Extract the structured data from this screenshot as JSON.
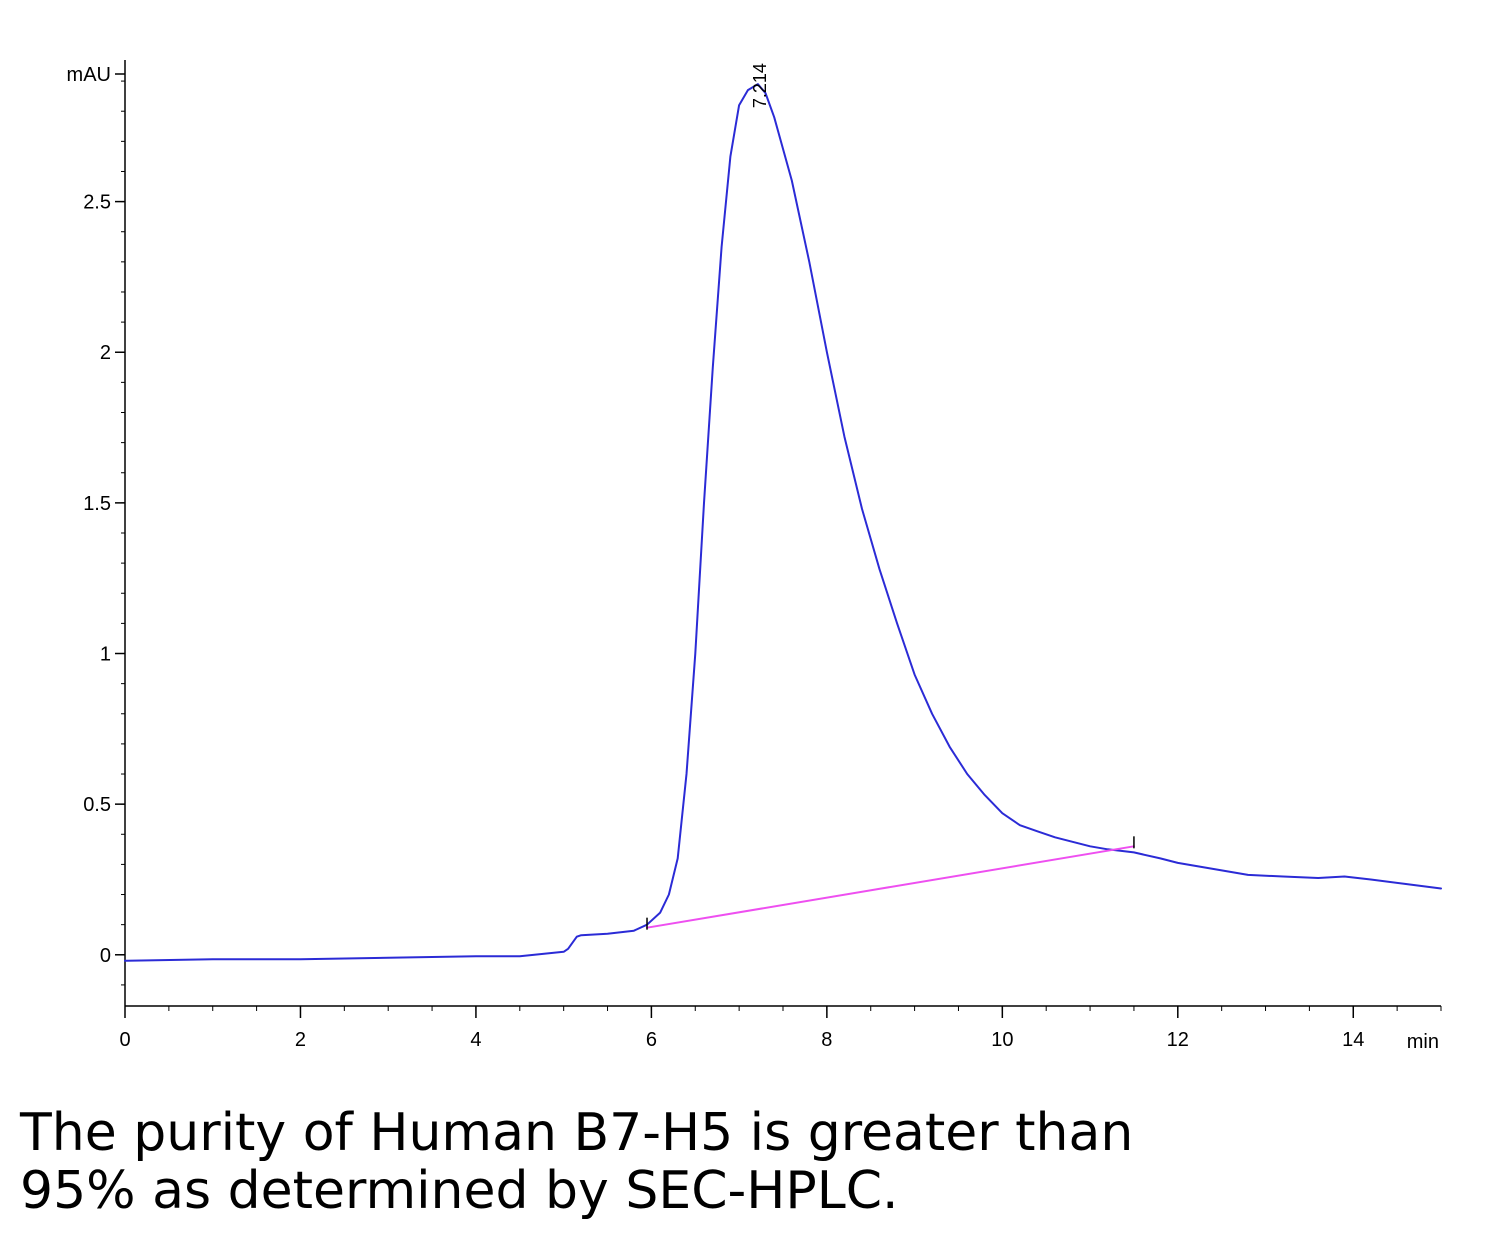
{
  "chart_data": {
    "type": "line",
    "ylabel": "mAU",
    "xlabel": "min",
    "xlim": [
      0,
      15
    ],
    "ylim": [
      -0.17,
      2.97
    ],
    "x_ticks": [
      0,
      2,
      4,
      6,
      8,
      10,
      12,
      14
    ],
    "y_ticks": [
      0,
      0.5,
      1,
      1.5,
      2,
      2.5
    ],
    "grid": false,
    "series": [
      {
        "color": "#2b2bd6",
        "x": [
          0,
          1,
          2,
          3,
          4,
          4.5,
          5.0,
          5.05,
          5.15,
          5.2,
          5.5,
          5.8,
          5.95,
          6.1,
          6.2,
          6.3,
          6.4,
          6.5,
          6.6,
          6.7,
          6.8,
          6.9,
          7.0,
          7.1,
          7.214,
          7.3,
          7.4,
          7.6,
          7.8,
          8.0,
          8.2,
          8.4,
          8.6,
          8.8,
          9.0,
          9.2,
          9.4,
          9.6,
          9.8,
          10.0,
          10.2,
          10.4,
          10.6,
          10.8,
          11.0,
          11.2,
          11.5,
          11.8,
          12.0,
          12.4,
          12.8,
          13.2,
          13.6,
          13.9,
          14.2,
          14.6,
          15.0
        ],
        "y": [
          -0.02,
          -0.015,
          -0.015,
          -0.01,
          -0.005,
          -0.005,
          0.01,
          0.02,
          0.06,
          0.065,
          0.07,
          0.08,
          0.1,
          0.14,
          0.2,
          0.32,
          0.6,
          1.0,
          1.5,
          1.95,
          2.35,
          2.65,
          2.82,
          2.87,
          2.89,
          2.86,
          2.78,
          2.57,
          2.3,
          2.0,
          1.72,
          1.48,
          1.28,
          1.1,
          0.93,
          0.8,
          0.69,
          0.6,
          0.53,
          0.47,
          0.43,
          0.41,
          0.39,
          0.375,
          0.36,
          0.35,
          0.34,
          0.32,
          0.305,
          0.285,
          0.265,
          0.26,
          0.255,
          0.26,
          0.25,
          0.235,
          0.22
        ]
      },
      {
        "color": "#ee4ff0",
        "x": [
          5.95,
          11.5
        ],
        "y": [
          0.09,
          0.36
        ]
      }
    ],
    "annotations": [
      {
        "text": "7.214",
        "x": 7.214,
        "y": 2.89
      }
    ]
  },
  "caption": {
    "line1": "The purity of Human B7-H5 is greater than",
    "line2": "95% as determined by SEC-HPLC."
  }
}
